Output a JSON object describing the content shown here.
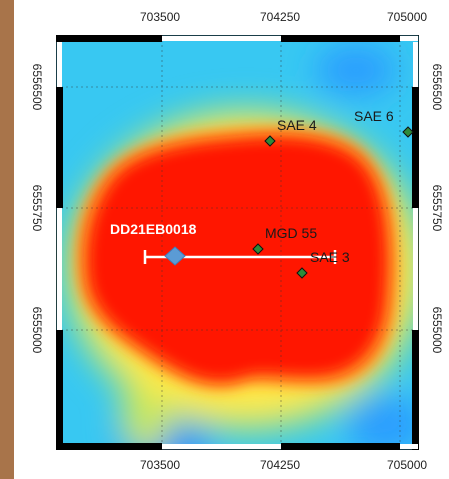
{
  "map": {
    "x_ticks": [
      "703500",
      "704250",
      "705000"
    ],
    "y_ticks": [
      "6556500",
      "6555750",
      "6555000"
    ],
    "drillhole": {
      "label": "DD21EB0018"
    },
    "stations": [
      {
        "label": "SAE 4"
      },
      {
        "label": "SAE 6"
      },
      {
        "label": "MGD 55"
      },
      {
        "label": "SAE 3"
      }
    ],
    "colors": {
      "high": "#ff1a00",
      "mid": "#ffe600",
      "low": "#33ccff",
      "deep": "#1e90ff",
      "station": "#2e8b3a",
      "drillhole": "#5b9bd5",
      "section_line": "#ffffff"
    }
  }
}
